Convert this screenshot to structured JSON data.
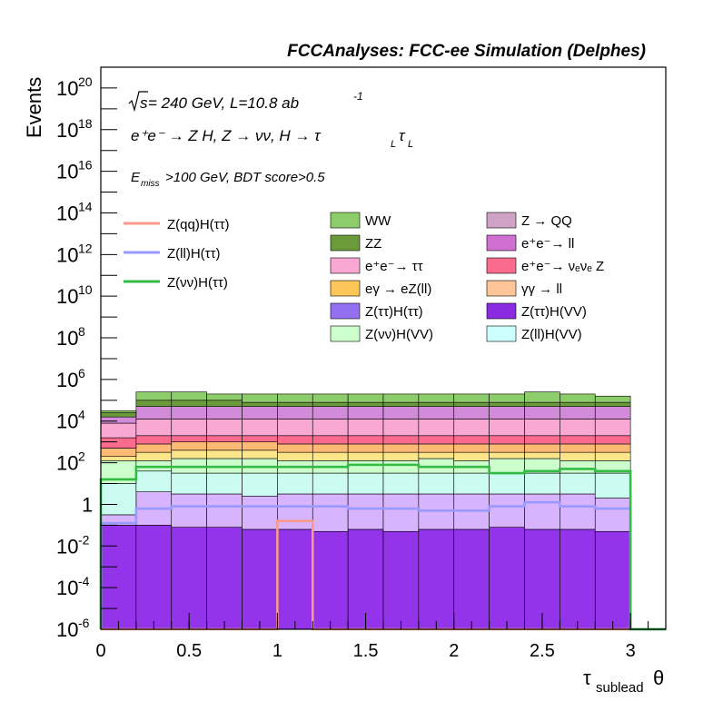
{
  "chart_data": {
    "type": "histogram-stacked",
    "title": "FCCAnalyses: FCC-ee Simulation (Delphes)",
    "ylabel": "Events",
    "xlabel_main": "τ",
    "xlabel_sub": "sublead",
    "xlabel_end": "θ",
    "xlim": [
      0,
      3.2
    ],
    "ylim_log10": [
      -6,
      21
    ],
    "yscale": "log",
    "x_ticks": [
      "0",
      "0.5",
      "1",
      "1.5",
      "2",
      "2.5",
      "3"
    ],
    "x_tick_values": [
      0,
      0.5,
      1,
      1.5,
      2,
      2.5,
      3
    ],
    "y_ticks": [
      {
        "exp": -6,
        "label": "10",
        "sup": "-6"
      },
      {
        "exp": -4,
        "label": "10",
        "sup": "-4"
      },
      {
        "exp": -2,
        "label": "10",
        "sup": "-2"
      },
      {
        "exp": 0,
        "label": "1",
        "sup": ""
      },
      {
        "exp": 2,
        "label": "10",
        "sup": "2"
      },
      {
        "exp": 4,
        "label": "10",
        "sup": "4"
      },
      {
        "exp": 6,
        "label": "10",
        "sup": "6"
      },
      {
        "exp": 8,
        "label": "10",
        "sup": "8"
      },
      {
        "exp": 10,
        "label": "10",
        "sup": "10"
      },
      {
        "exp": 12,
        "label": "10",
        "sup": "12"
      },
      {
        "exp": 14,
        "label": "10",
        "sup": "14"
      },
      {
        "exp": 16,
        "label": "10",
        "sup": "16"
      },
      {
        "exp": 18,
        "label": "10",
        "sup": "18"
      },
      {
        "exp": 20,
        "label": "10",
        "sup": "20"
      }
    ],
    "annotations": {
      "sqrt_s": "s",
      "energy": " = 240 GeV, L=10.8 ab",
      "lumi_exp": "-1",
      "process": "e⁺e⁻ → Z H, Z → νν, H → τ",
      "tau_sub": "L",
      "selection_pre": "E",
      "selection_sub": "miss",
      "selection_post": ">100 GeV, BDT score>0.5"
    },
    "bin_edges": [
      0,
      0.2,
      0.4,
      0.6,
      0.8,
      1.0,
      1.2,
      1.4,
      1.6,
      1.8,
      2.0,
      2.2,
      2.4,
      2.6,
      2.8,
      3.0
    ],
    "stack_top_log10": [
      [
        -6,
        -6,
        -6,
        -6,
        -6,
        -6,
        -6,
        -6,
        -6,
        -6,
        -6,
        -6,
        -6,
        -6,
        -6
      ],
      [
        -1.0,
        -1.0,
        -1.1,
        -1.1,
        -1.2,
        -1.2,
        -1.3,
        -1.2,
        -1.3,
        -1.2,
        -1.2,
        -1.1,
        -1.2,
        -1.2,
        -1.3
      ],
      [
        -0.5,
        0.6,
        0.5,
        0.5,
        0.4,
        0.5,
        0.5,
        0.5,
        0.5,
        0.5,
        0.5,
        0.5,
        0.5,
        0.5,
        0.3
      ],
      [
        1.0,
        1.6,
        1.5,
        1.5,
        1.5,
        1.5,
        1.5,
        1.5,
        1.5,
        1.5,
        1.5,
        1.5,
        1.5,
        1.5,
        1.5
      ],
      [
        2.1,
        2.1,
        2.2,
        2.2,
        2.2,
        2.1,
        2.1,
        2.1,
        2.1,
        2.2,
        2.1,
        2.2,
        2.2,
        2.1,
        2.1
      ],
      [
        2.3,
        2.5,
        2.6,
        2.6,
        2.6,
        2.5,
        2.5,
        2.5,
        2.5,
        2.5,
        2.5,
        2.5,
        2.5,
        2.5,
        2.5
      ],
      [
        2.7,
        2.9,
        3.0,
        3.0,
        3.0,
        2.9,
        2.9,
        2.9,
        2.9,
        2.9,
        2.9,
        2.9,
        2.9,
        2.9,
        2.9
      ],
      [
        3.2,
        3.3,
        3.3,
        3.3,
        3.3,
        3.3,
        3.3,
        3.3,
        3.3,
        3.3,
        3.3,
        3.3,
        3.3,
        3.3,
        3.3
      ],
      [
        3.9,
        4.1,
        4.1,
        4.1,
        4.1,
        4.1,
        4.1,
        4.1,
        4.1,
        4.1,
        4.1,
        4.1,
        4.1,
        4.1,
        4.1
      ],
      [
        4.2,
        4.7,
        4.7,
        4.7,
        4.7,
        4.7,
        4.7,
        4.7,
        4.7,
        4.7,
        4.7,
        4.7,
        4.7,
        4.7,
        4.7
      ],
      [
        4.2,
        4.7,
        4.7,
        4.7,
        4.7,
        4.7,
        4.7,
        4.7,
        4.7,
        4.7,
        4.7,
        4.7,
        4.7,
        4.7,
        4.7
      ],
      [
        4.4,
        5.0,
        5.0,
        5.0,
        4.9,
        4.9,
        4.9,
        4.9,
        4.9,
        4.9,
        4.9,
        4.9,
        4.9,
        4.9,
        4.9
      ],
      [
        4.5,
        5.4,
        5.4,
        5.3,
        5.3,
        5.3,
        5.3,
        5.3,
        5.3,
        5.3,
        5.3,
        5.3,
        5.4,
        5.3,
        5.2
      ]
    ],
    "stack_colors": [
      "#8b5cf6",
      "#9333ea",
      "#d8b4fe",
      "#ccfbf1",
      "#ccffcc",
      "#fde68a",
      "#fdba74",
      "#fb6b8e",
      "#f9a8d4",
      "#d18bd8",
      "#cfa3c6",
      "#6a9a3a",
      "#8dcc6a"
    ],
    "overlay_series": [
      {
        "name": "Z(qq)H(ττ)",
        "color": "#fa9a8c",
        "log10": [
          -6,
          -6,
          -6,
          -6,
          -6,
          -0.8,
          -6,
          -6,
          -6,
          -6,
          -6,
          -6,
          -6,
          -6,
          -6
        ]
      },
      {
        "name": "Z(ll)H(ττ)",
        "color": "#9999ff",
        "log10": [
          -0.9,
          -0.2,
          -0.1,
          -0.1,
          -0.1,
          -0.1,
          -0.1,
          -0.2,
          -0.2,
          -0.3,
          -0.3,
          -0.1,
          0.1,
          -0.1,
          -0.2
        ]
      },
      {
        "name": "Z(νν)H(ττ)",
        "color": "#33bb44",
        "log10": [
          1.2,
          1.8,
          1.8,
          1.8,
          1.8,
          1.8,
          1.8,
          1.9,
          1.9,
          1.8,
          1.8,
          1.5,
          1.6,
          1.7,
          1.6
        ]
      }
    ],
    "legend_overlays": [
      {
        "label": "Z(qq)H(ττ)",
        "color": "#fa9a8c"
      },
      {
        "label": "Z(ll)H(ττ)",
        "color": "#9999ff"
      },
      {
        "label": "Z(νν)H(ττ)",
        "color": "#33bb44"
      }
    ],
    "legend_stack": [
      {
        "label": "WW",
        "color": "#8dcc6a"
      },
      {
        "label": "Z → QQ",
        "color": "#cfa3c6"
      },
      {
        "label": "ZZ",
        "color": "#6a9a3a"
      },
      {
        "label": "e⁺e⁻→ ll",
        "color": "#d070d0"
      },
      {
        "label": "e⁺e⁻→ ττ",
        "color": "#f9a8d4"
      },
      {
        "label": "e⁺e⁻→ νₑνₑ Z",
        "color": "#fb6b8e"
      },
      {
        "label": "eγ → eZ(ll)",
        "color": "#fdc658"
      },
      {
        "label": "γγ → ll",
        "color": "#fdc598"
      },
      {
        "label": "Z(ττ)H(ττ)",
        "color": "#9370f0"
      },
      {
        "label": "Z(ττ)H(VV)",
        "color": "#8a2be2"
      },
      {
        "label": "Z(νν)H(VV)",
        "color": "#ccffcc"
      },
      {
        "label": "Z(ll)H(VV)",
        "color": "#ccffff"
      }
    ]
  }
}
